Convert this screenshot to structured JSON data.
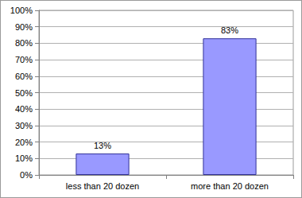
{
  "chart_data": {
    "type": "bar",
    "categories": [
      "less than 20 dozen",
      "more than 20 dozen"
    ],
    "values": [
      13,
      83
    ],
    "value_labels": [
      "13%",
      "83%"
    ],
    "data_labels": true,
    "color": "#9999ff",
    "ylim": [
      0,
      100
    ],
    "yticks": [
      {
        "value": 0,
        "label": "0%"
      },
      {
        "value": 10,
        "label": "10%"
      },
      {
        "value": 20,
        "label": "20%"
      },
      {
        "value": 30,
        "label": "30%"
      },
      {
        "value": 40,
        "label": "40%"
      },
      {
        "value": 50,
        "label": "50%"
      },
      {
        "value": 60,
        "label": "60%"
      },
      {
        "value": 70,
        "label": "70%"
      },
      {
        "value": 80,
        "label": "80%"
      },
      {
        "value": 90,
        "label": "90%"
      },
      {
        "value": 100,
        "label": "100%"
      }
    ],
    "grid": true
  }
}
